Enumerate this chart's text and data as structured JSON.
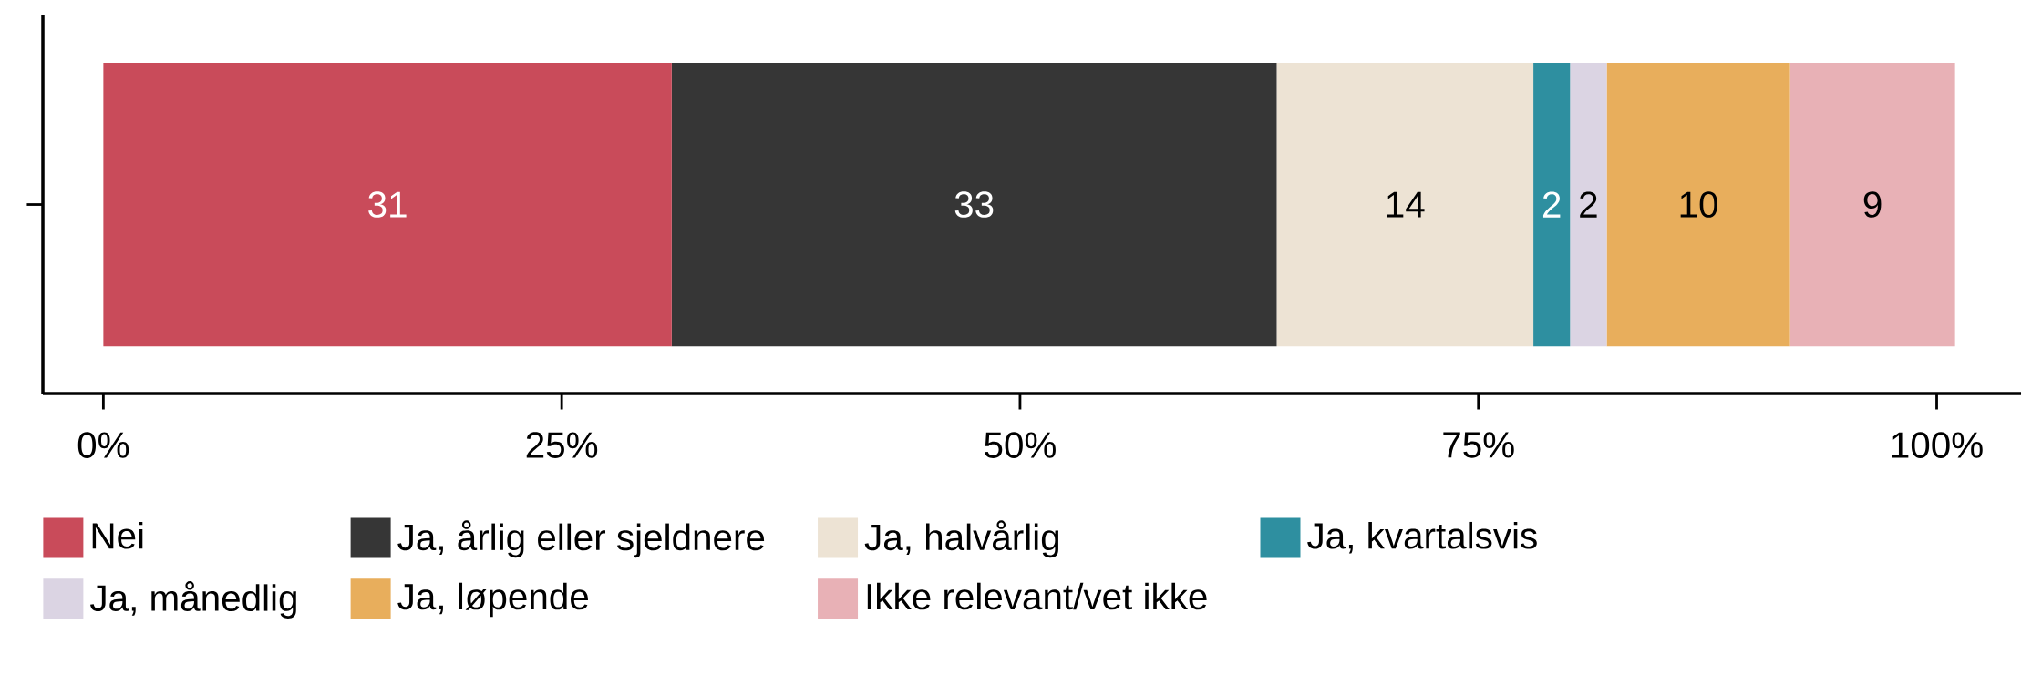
{
  "chart_data": {
    "type": "bar",
    "orientation": "horizontal",
    "stacked": true,
    "data_labels": true,
    "legend": "bottom",
    "grid": false,
    "categories": [
      null
    ],
    "series": [
      {
        "name": "Nei",
        "color": "#c94b5a",
        "values": [
          31
        ]
      },
      {
        "name": "Ja, årlig eller sjeldnere",
        "color": "#363636",
        "values": [
          33
        ]
      },
      {
        "name": "Ja, halvårlig",
        "color": "#ede3d4",
        "values": [
          14
        ]
      },
      {
        "name": "Ja, kvartalsvis",
        "color": "#2e8fa0",
        "values": [
          2
        ]
      },
      {
        "name": "Ja, månedlig",
        "color": "#dbd4e3",
        "values": [
          2
        ]
      },
      {
        "name": "Ja, løpende",
        "color": "#e8ae5c",
        "values": [
          10
        ]
      },
      {
        "name": "Ikke relevant/vet ikke",
        "color": "#e8b1b6",
        "values": [
          9
        ]
      }
    ],
    "xlim": [
      -3.3,
      104.6
    ],
    "xticks": [
      {
        "value": 0,
        "label": "0%"
      },
      {
        "value": 25,
        "label": "25%"
      },
      {
        "value": 50,
        "label": "50%"
      },
      {
        "value": 75,
        "label": "75%"
      },
      {
        "value": 100,
        "label": "100%"
      }
    ]
  }
}
